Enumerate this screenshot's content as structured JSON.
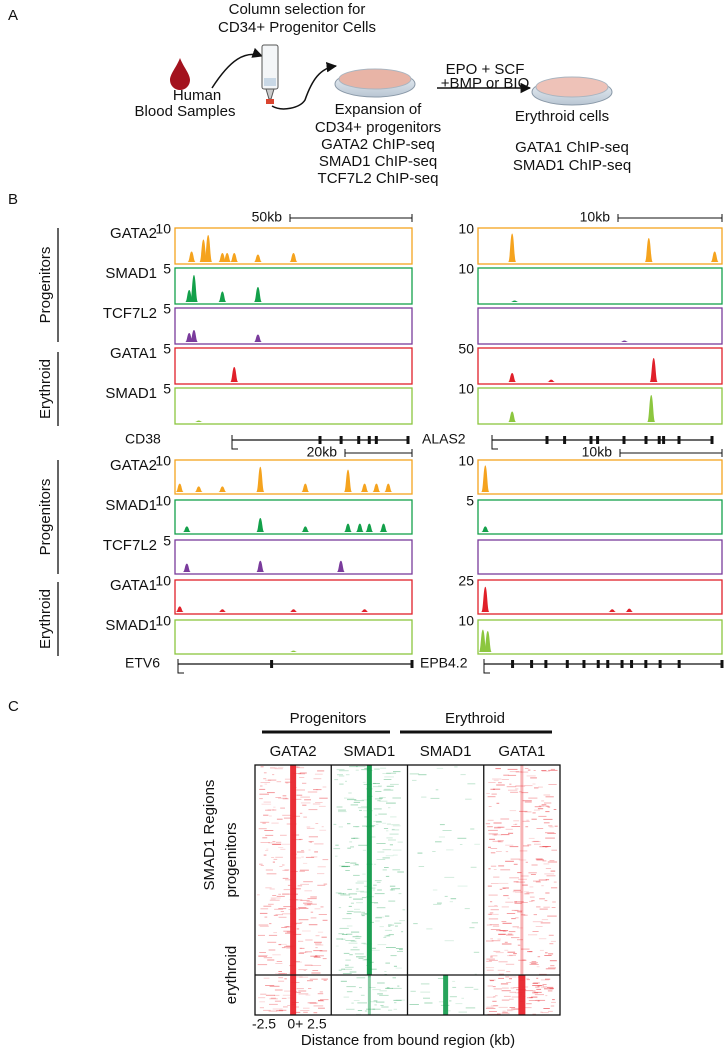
{
  "panel_a": {
    "label": "A",
    "column_title": [
      "Column selection for",
      "CD34+ Progenitor Cells"
    ],
    "blood": [
      "Human",
      "Blood Samples"
    ],
    "expansion": [
      "Expansion of",
      "CD34+ progenitors",
      "GATA2 ChIP-seq",
      "SMAD1 ChIP-seq",
      "TCF7L2 ChIP-seq"
    ],
    "treatment": [
      "EPO + SCF",
      "+BMP or BIO"
    ],
    "erythroid": [
      "Erythroid cells",
      "GATA1 ChIP-seq",
      "SMAD1 ChIP-seq"
    ]
  },
  "panel_b": {
    "label": "B",
    "group_labels": [
      "Progenitors",
      "Erythroid"
    ],
    "tracks": [
      "GATA2",
      "SMAD1",
      "TCF7L2",
      "GATA1",
      "SMAD1"
    ],
    "loci": [
      {
        "gene": "CD38",
        "scale": "50kb",
        "track_max": [
          10,
          5,
          5,
          5,
          5
        ]
      },
      {
        "gene": "ALAS2",
        "scale": "10kb",
        "track_max": [
          10,
          10,
          null,
          50,
          10
        ]
      },
      {
        "gene": "ETV6",
        "scale": "20kb",
        "track_max": [
          10,
          10,
          5,
          10,
          10
        ]
      },
      {
        "gene": "EPB4.2",
        "scale": "10kb",
        "track_max": [
          10,
          5,
          null,
          25,
          10
        ]
      }
    ]
  },
  "panel_c": {
    "label": "C",
    "groups": [
      "Progenitors",
      "Erythroid"
    ],
    "columns": [
      "GATA2",
      "SMAD1",
      "SMAD1",
      "GATA1"
    ],
    "y_label": "SMAD1 Regions",
    "row_labels": [
      "progenitors",
      "erythroid"
    ],
    "x_ticks": [
      "-2.5",
      "0+ 2.5"
    ],
    "x_label": "Distance from bound region (kb)"
  }
}
